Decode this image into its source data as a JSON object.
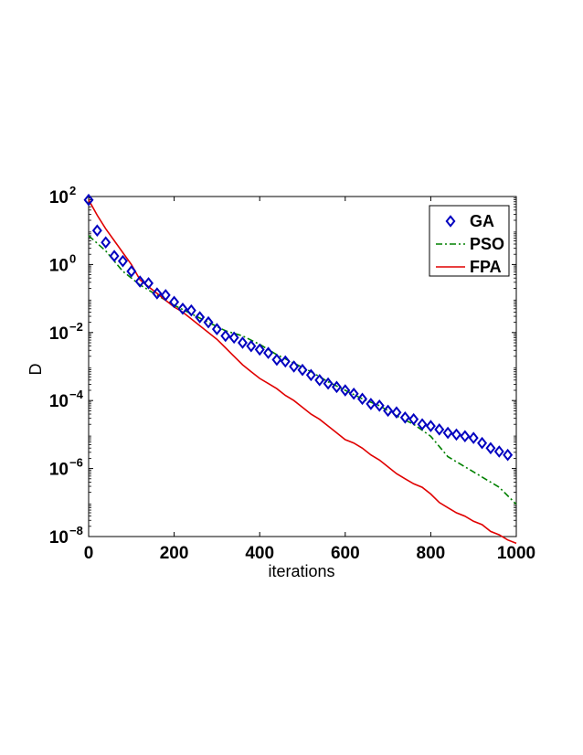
{
  "chart_data": {
    "type": "line",
    "xlabel": "iterations",
    "ylabel": "D",
    "xlim": [
      0,
      1000
    ],
    "ylim_log10": [
      -8,
      2
    ],
    "yscale": "log",
    "x_ticks": [
      "0",
      "200",
      "400",
      "600",
      "800",
      "1000"
    ],
    "y_tick_exponents": [
      "2",
      "0",
      "−2",
      "−4",
      "−6",
      "−8"
    ],
    "y_tick_base": "10",
    "legend_position": "top-right",
    "grid": false,
    "series": [
      {
        "name": "GA",
        "style": "markers-diamond",
        "color": "#0000c0",
        "x": [
          0,
          20,
          40,
          60,
          80,
          100,
          120,
          140,
          160,
          180,
          200,
          220,
          240,
          260,
          280,
          300,
          320,
          340,
          360,
          380,
          400,
          420,
          440,
          460,
          480,
          500,
          520,
          540,
          560,
          580,
          600,
          620,
          640,
          660,
          680,
          700,
          720,
          740,
          760,
          780,
          800,
          820,
          840,
          860,
          880,
          900,
          920,
          940,
          960,
          980
        ],
        "log10_y": [
          1.9,
          1.0,
          0.65,
          0.25,
          0.1,
          -0.2,
          -0.5,
          -0.55,
          -0.85,
          -0.9,
          -1.1,
          -1.3,
          -1.35,
          -1.55,
          -1.7,
          -1.9,
          -2.1,
          -2.15,
          -2.3,
          -2.4,
          -2.5,
          -2.6,
          -2.8,
          -2.85,
          -3.0,
          -3.1,
          -3.25,
          -3.4,
          -3.5,
          -3.6,
          -3.7,
          -3.8,
          -3.95,
          -4.1,
          -4.15,
          -4.3,
          -4.35,
          -4.5,
          -4.55,
          -4.7,
          -4.75,
          -4.85,
          -4.95,
          -5.0,
          -5.05,
          -5.1,
          -5.25,
          -5.4,
          -5.5,
          -5.6
        ]
      },
      {
        "name": "PSO",
        "style": "dash-dot",
        "color": "#008000",
        "x": [
          0,
          40,
          80,
          120,
          160,
          200,
          240,
          280,
          320,
          360,
          400,
          440,
          480,
          520,
          560,
          600,
          640,
          680,
          720,
          760,
          800,
          840,
          880,
          920,
          960,
          1000
        ],
        "log10_y": [
          0.85,
          0.4,
          -0.2,
          -0.6,
          -0.9,
          -1.2,
          -1.45,
          -1.7,
          -1.95,
          -2.1,
          -2.35,
          -2.65,
          -2.9,
          -3.15,
          -3.45,
          -3.7,
          -3.95,
          -4.15,
          -4.45,
          -4.7,
          -5.05,
          -5.65,
          -5.95,
          -6.25,
          -6.55,
          -7.05
        ]
      },
      {
        "name": "FPA",
        "style": "solid",
        "color": "#e00000",
        "x": [
          0,
          20,
          40,
          60,
          80,
          100,
          120,
          140,
          160,
          180,
          200,
          220,
          240,
          260,
          280,
          300,
          320,
          340,
          360,
          380,
          400,
          420,
          440,
          460,
          480,
          500,
          520,
          540,
          560,
          580,
          600,
          620,
          640,
          660,
          680,
          700,
          720,
          740,
          760,
          780,
          800,
          820,
          840,
          860,
          880,
          900,
          920,
          940,
          960,
          980,
          1000
        ],
        "log10_y": [
          1.9,
          1.45,
          1.05,
          0.7,
          0.35,
          0.0,
          -0.45,
          -0.65,
          -0.85,
          -1.05,
          -1.25,
          -1.4,
          -1.6,
          -1.8,
          -2.0,
          -2.2,
          -2.45,
          -2.7,
          -2.95,
          -3.15,
          -3.35,
          -3.5,
          -3.65,
          -3.85,
          -4.0,
          -4.2,
          -4.4,
          -4.55,
          -4.75,
          -4.95,
          -5.15,
          -5.25,
          -5.4,
          -5.6,
          -5.75,
          -5.95,
          -6.15,
          -6.3,
          -6.45,
          -6.55,
          -6.75,
          -7.0,
          -7.15,
          -7.3,
          -7.4,
          -7.55,
          -7.65,
          -7.85,
          -7.95,
          -8.1,
          -8.2
        ]
      }
    ]
  }
}
